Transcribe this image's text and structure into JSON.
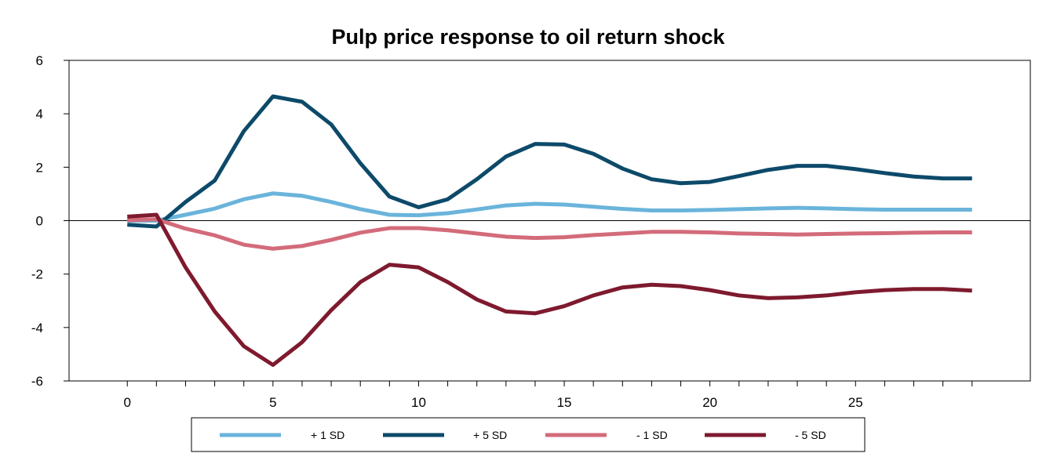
{
  "chart_data": {
    "type": "line",
    "title": "Pulp price response to oil return shock",
    "xlabel": "",
    "ylabel": "",
    "xlim": [
      -2,
      31
    ],
    "ylim": [
      -6,
      6
    ],
    "x_ticks": [
      0,
      5,
      10,
      15,
      20,
      25
    ],
    "y_ticks": [
      6,
      4,
      2,
      0,
      -2,
      -4,
      -6
    ],
    "y_tick_labels": [
      "6",
      "4",
      "2",
      "0",
      "-2",
      "-4",
      "-6"
    ],
    "minor_x_ticks_every": 1,
    "grid": false,
    "zero_line": true,
    "legend_position": "bottom",
    "x": [
      0,
      1,
      2,
      3,
      4,
      5,
      6,
      7,
      8,
      9,
      10,
      11,
      12,
      13,
      14,
      15,
      16,
      17,
      18,
      19,
      20,
      21,
      22,
      23,
      24,
      25,
      26,
      27,
      28,
      29
    ],
    "series": [
      {
        "name": "+ 1 SD",
        "color": "#6ab4db",
        "values": [
          0.0,
          0.0,
          0.22,
          0.45,
          0.8,
          1.02,
          0.93,
          0.7,
          0.43,
          0.22,
          0.2,
          0.28,
          0.42,
          0.57,
          0.63,
          0.6,
          0.52,
          0.44,
          0.38,
          0.38,
          0.4,
          0.43,
          0.46,
          0.48,
          0.46,
          0.43,
          0.41,
          0.41,
          0.41,
          0.41
        ]
      },
      {
        "name": "+ 5 SD",
        "color": "#0d4a6a",
        "values": [
          -0.15,
          -0.22,
          0.7,
          1.5,
          3.35,
          4.65,
          4.45,
          3.6,
          2.15,
          0.9,
          0.5,
          0.8,
          1.55,
          2.4,
          2.87,
          2.85,
          2.5,
          1.95,
          1.55,
          1.4,
          1.45,
          1.67,
          1.9,
          2.05,
          2.05,
          1.93,
          1.78,
          1.65,
          1.58,
          1.58
        ]
      },
      {
        "name": "- 1 SD",
        "color": "#d36b7a",
        "values": [
          0.02,
          0.05,
          -0.3,
          -0.55,
          -0.9,
          -1.05,
          -0.95,
          -0.72,
          -0.45,
          -0.28,
          -0.28,
          -0.36,
          -0.48,
          -0.6,
          -0.65,
          -0.62,
          -0.54,
          -0.48,
          -0.42,
          -0.42,
          -0.44,
          -0.48,
          -0.5,
          -0.52,
          -0.5,
          -0.48,
          -0.47,
          -0.45,
          -0.44,
          -0.44
        ]
      },
      {
        "name": "- 5 SD",
        "color": "#7e1a2e",
        "values": [
          0.15,
          0.22,
          -1.75,
          -3.4,
          -4.7,
          -5.4,
          -4.55,
          -3.35,
          -2.3,
          -1.65,
          -1.75,
          -2.3,
          -2.95,
          -3.4,
          -3.47,
          -3.2,
          -2.8,
          -2.5,
          -2.4,
          -2.45,
          -2.6,
          -2.8,
          -2.9,
          -2.87,
          -2.8,
          -2.68,
          -2.6,
          -2.56,
          -2.56,
          -2.62
        ]
      }
    ]
  }
}
